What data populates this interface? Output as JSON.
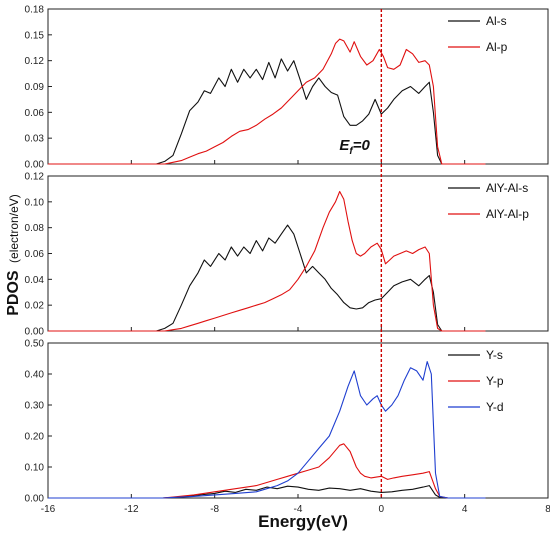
{
  "chart_data": {
    "type": "line",
    "shared_x": {
      "label": "Energy(eV)",
      "xlim": [
        -16,
        8
      ],
      "ticks": [
        -16,
        -12,
        -8,
        -4,
        0,
        4,
        8
      ],
      "tick_labels": [
        "-16",
        "-12",
        "-8",
        "-4",
        "0",
        "4",
        "8"
      ]
    },
    "shared_ylabel": {
      "main": "PDOS",
      "unit": "(electron/eV)"
    },
    "fermi_level": {
      "x": 0,
      "label_main": "E",
      "label_sub": "f",
      "label_rest": "=0",
      "color": "#cc0000"
    },
    "colors": {
      "s": "#111111",
      "p": "#e01010",
      "d": "#1f3fd0"
    },
    "panels": [
      {
        "ylim": [
          0,
          0.18
        ],
        "yticks": [
          0.0,
          0.03,
          0.06,
          0.09,
          0.12,
          0.15,
          0.18
        ],
        "ytick_labels": [
          "0.00",
          "0.03",
          "0.06",
          "0.09",
          "0.12",
          "0.15",
          "0.18"
        ],
        "series": [
          {
            "name": "Al-s",
            "color_key": "s",
            "x": [
              -16,
              -10.8,
              -10.4,
              -10.0,
              -9.6,
              -9.2,
              -8.8,
              -8.5,
              -8.2,
              -7.8,
              -7.5,
              -7.2,
              -6.9,
              -6.6,
              -6.3,
              -6.0,
              -5.7,
              -5.4,
              -5.1,
              -4.8,
              -4.5,
              -4.2,
              -3.9,
              -3.6,
              -3.3,
              -3.0,
              -2.7,
              -2.4,
              -2.1,
              -1.8,
              -1.5,
              -1.2,
              -0.9,
              -0.6,
              -0.3,
              0.0,
              0.3,
              0.6,
              1.0,
              1.4,
              1.8,
              2.1,
              2.3,
              2.5,
              2.7,
              2.9,
              3.2,
              5.0
            ],
            "y": [
              0.0,
              0.0,
              0.003,
              0.01,
              0.035,
              0.062,
              0.072,
              0.085,
              0.082,
              0.1,
              0.09,
              0.11,
              0.095,
              0.11,
              0.1,
              0.11,
              0.098,
              0.118,
              0.1,
              0.122,
              0.108,
              0.12,
              0.098,
              0.075,
              0.09,
              0.1,
              0.09,
              0.083,
              0.08,
              0.055,
              0.045,
              0.045,
              0.05,
              0.058,
              0.075,
              0.058,
              0.065,
              0.075,
              0.085,
              0.09,
              0.082,
              0.09,
              0.095,
              0.06,
              0.01,
              0.0,
              0.0,
              0.0
            ]
          },
          {
            "name": "Al-p",
            "color_key": "p",
            "x": [
              -16,
              -10.8,
              -10.4,
              -10.0,
              -9.6,
              -9.2,
              -8.8,
              -8.4,
              -8.0,
              -7.6,
              -7.2,
              -6.8,
              -6.4,
              -6.0,
              -5.6,
              -5.2,
              -4.8,
              -4.4,
              -4.0,
              -3.6,
              -3.2,
              -2.8,
              -2.4,
              -2.2,
              -2.0,
              -1.8,
              -1.5,
              -1.3,
              -1.0,
              -0.7,
              -0.4,
              -0.1,
              0.1,
              0.3,
              0.6,
              0.9,
              1.2,
              1.5,
              1.8,
              2.1,
              2.3,
              2.5,
              2.7,
              2.9,
              3.2,
              5.0
            ],
            "y": [
              0.0,
              0.0,
              0.0,
              0.002,
              0.004,
              0.008,
              0.012,
              0.015,
              0.02,
              0.025,
              0.032,
              0.038,
              0.04,
              0.045,
              0.052,
              0.058,
              0.065,
              0.075,
              0.085,
              0.095,
              0.1,
              0.11,
              0.128,
              0.14,
              0.145,
              0.143,
              0.13,
              0.142,
              0.125,
              0.115,
              0.12,
              0.133,
              0.125,
              0.112,
              0.11,
              0.115,
              0.133,
              0.128,
              0.118,
              0.12,
              0.115,
              0.09,
              0.02,
              0.0,
              0.0,
              0.0
            ]
          }
        ]
      },
      {
        "ylim": [
          0,
          0.12
        ],
        "yticks": [
          0.0,
          0.02,
          0.04,
          0.06,
          0.08,
          0.1,
          0.12
        ],
        "ytick_labels": [
          "0.00",
          "0.02",
          "0.04",
          "0.06",
          "0.08",
          "0.10",
          "0.12"
        ],
        "series": [
          {
            "name": "AlY-Al-s",
            "color_key": "s",
            "x": [
              -16,
              -10.8,
              -10.4,
              -10.0,
              -9.6,
              -9.2,
              -8.8,
              -8.5,
              -8.2,
              -7.8,
              -7.5,
              -7.2,
              -6.9,
              -6.6,
              -6.3,
              -6.0,
              -5.7,
              -5.4,
              -5.1,
              -4.8,
              -4.5,
              -4.2,
              -3.9,
              -3.6,
              -3.3,
              -3.0,
              -2.7,
              -2.4,
              -2.1,
              -1.8,
              -1.5,
              -1.2,
              -0.9,
              -0.6,
              -0.3,
              0.0,
              0.3,
              0.6,
              1.0,
              1.4,
              1.8,
              2.1,
              2.3,
              2.5,
              2.7,
              2.9,
              3.2,
              5.0
            ],
            "y": [
              0.0,
              0.0,
              0.002,
              0.006,
              0.02,
              0.035,
              0.045,
              0.055,
              0.05,
              0.06,
              0.055,
              0.065,
              0.058,
              0.065,
              0.06,
              0.07,
              0.062,
              0.072,
              0.068,
              0.075,
              0.082,
              0.075,
              0.06,
              0.045,
              0.05,
              0.045,
              0.04,
              0.033,
              0.028,
              0.022,
              0.018,
              0.017,
              0.018,
              0.022,
              0.024,
              0.025,
              0.03,
              0.035,
              0.038,
              0.04,
              0.035,
              0.04,
              0.043,
              0.03,
              0.005,
              0.0,
              0.0,
              0.0
            ]
          },
          {
            "name": "AlY-Al-p",
            "color_key": "p",
            "x": [
              -16,
              -10.8,
              -10.4,
              -10.0,
              -9.6,
              -9.2,
              -8.8,
              -8.4,
              -8.0,
              -7.6,
              -7.2,
              -6.8,
              -6.4,
              -6.0,
              -5.6,
              -5.2,
              -4.8,
              -4.4,
              -4.0,
              -3.6,
              -3.2,
              -2.8,
              -2.5,
              -2.2,
              -2.0,
              -1.8,
              -1.6,
              -1.4,
              -1.2,
              -1.0,
              -0.8,
              -0.5,
              -0.2,
              0.0,
              0.2,
              0.4,
              0.6,
              0.9,
              1.2,
              1.5,
              1.8,
              2.1,
              2.3,
              2.5,
              2.7,
              2.9,
              3.2,
              5.0
            ],
            "y": [
              0.0,
              0.0,
              0.0,
              0.001,
              0.002,
              0.004,
              0.006,
              0.008,
              0.01,
              0.012,
              0.014,
              0.016,
              0.018,
              0.02,
              0.022,
              0.025,
              0.028,
              0.032,
              0.04,
              0.05,
              0.062,
              0.08,
              0.092,
              0.1,
              0.108,
              0.102,
              0.085,
              0.07,
              0.06,
              0.058,
              0.06,
              0.065,
              0.068,
              0.063,
              0.052,
              0.055,
              0.058,
              0.06,
              0.062,
              0.06,
              0.063,
              0.065,
              0.06,
              0.02,
              0.002,
              0.0,
              0.0,
              0.0
            ]
          }
        ]
      },
      {
        "ylim": [
          0,
          0.5
        ],
        "yticks": [
          0.0,
          0.1,
          0.2,
          0.3,
          0.4,
          0.5
        ],
        "ytick_labels": [
          "0.00",
          "0.10",
          "0.20",
          "0.30",
          "0.40",
          "0.50"
        ],
        "series": [
          {
            "name": "Y-s",
            "color_key": "s",
            "x": [
              -16,
              -10.5,
              -10.0,
              -9.0,
              -8.0,
              -7.5,
              -7.0,
              -6.5,
              -6.0,
              -5.5,
              -5.0,
              -4.5,
              -4.0,
              -3.5,
              -3.0,
              -2.5,
              -2.0,
              -1.5,
              -1.0,
              -0.5,
              0.0,
              0.5,
              1.0,
              1.5,
              2.0,
              2.3,
              2.6,
              2.8,
              3.2,
              5.0
            ],
            "y": [
              0.0,
              0.0,
              0.002,
              0.008,
              0.015,
              0.022,
              0.018,
              0.028,
              0.025,
              0.035,
              0.03,
              0.038,
              0.035,
              0.028,
              0.025,
              0.032,
              0.03,
              0.025,
              0.03,
              0.022,
              0.018,
              0.02,
              0.025,
              0.028,
              0.035,
              0.04,
              0.01,
              0.002,
              0.0,
              0.0
            ]
          },
          {
            "name": "Y-p",
            "color_key": "p",
            "x": [
              -16,
              -10.5,
              -10.0,
              -9.0,
              -8.0,
              -7.0,
              -6.0,
              -5.5,
              -5.0,
              -4.5,
              -4.0,
              -3.5,
              -3.0,
              -2.5,
              -2.0,
              -1.8,
              -1.5,
              -1.2,
              -1.0,
              -0.8,
              -0.5,
              -0.2,
              0.0,
              0.3,
              0.6,
              1.0,
              1.5,
              2.0,
              2.3,
              2.6,
              2.8,
              3.2,
              5.0
            ],
            "y": [
              0.0,
              0.0,
              0.003,
              0.01,
              0.02,
              0.03,
              0.04,
              0.05,
              0.06,
              0.07,
              0.08,
              0.09,
              0.1,
              0.13,
              0.17,
              0.175,
              0.15,
              0.1,
              0.08,
              0.07,
              0.065,
              0.068,
              0.07,
              0.06,
              0.065,
              0.07,
              0.075,
              0.08,
              0.085,
              0.03,
              0.005,
              0.0,
              0.0
            ]
          },
          {
            "name": "Y-d",
            "color_key": "d",
            "x": [
              -16,
              -10.5,
              -10.0,
              -9.0,
              -8.0,
              -7.0,
              -6.0,
              -5.5,
              -5.0,
              -4.5,
              -4.0,
              -3.5,
              -3.0,
              -2.5,
              -2.0,
              -1.6,
              -1.3,
              -1.0,
              -0.7,
              -0.4,
              -0.2,
              0.0,
              0.2,
              0.5,
              0.8,
              1.1,
              1.4,
              1.7,
              2.0,
              2.2,
              2.4,
              2.6,
              2.8,
              3.2,
              5.0
            ],
            "y": [
              0.0,
              0.0,
              0.002,
              0.005,
              0.01,
              0.015,
              0.02,
              0.03,
              0.04,
              0.055,
              0.08,
              0.12,
              0.16,
              0.2,
              0.28,
              0.36,
              0.41,
              0.33,
              0.3,
              0.32,
              0.33,
              0.3,
              0.28,
              0.3,
              0.33,
              0.38,
              0.42,
              0.41,
              0.38,
              0.44,
              0.4,
              0.08,
              0.005,
              0.0,
              0.0
            ]
          }
        ]
      }
    ]
  }
}
